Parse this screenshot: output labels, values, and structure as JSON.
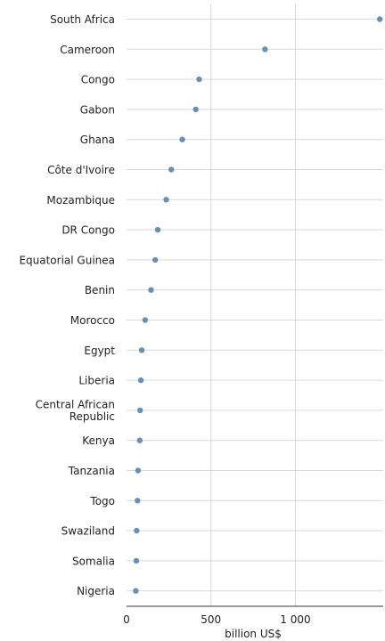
{
  "chart_data": {
    "type": "scatter",
    "categories": [
      "South Africa",
      "Cameroon",
      "Congo",
      "Gabon",
      "Ghana",
      "Côte d'Ivoire",
      "Mozambique",
      "DR Congo",
      "Equatorial Guinea",
      "Benin",
      "Morocco",
      "Egypt",
      "Liberia",
      "Central African Republic",
      "Kenya",
      "Tanzania",
      "Togo",
      "Swaziland",
      "Somalia",
      "Nigeria"
    ],
    "label_lines": [
      [
        "South Africa"
      ],
      [
        "Cameroon"
      ],
      [
        "Congo"
      ],
      [
        "Gabon"
      ],
      [
        "Ghana"
      ],
      [
        "Côte d'Ivoire"
      ],
      [
        "Mozambique"
      ],
      [
        "DR Congo"
      ],
      [
        "Equatorial Guinea"
      ],
      [
        "Benin"
      ],
      [
        "Morocco"
      ],
      [
        "Egypt"
      ],
      [
        "Liberia"
      ],
      [
        "Central African",
        "Republic"
      ],
      [
        "Kenya"
      ],
      [
        "Tanzania"
      ],
      [
        "Togo"
      ],
      [
        "Swaziland"
      ],
      [
        "Somalia"
      ],
      [
        "Nigeria"
      ]
    ],
    "values": [
      1500,
      820,
      430,
      410,
      330,
      265,
      235,
      185,
      170,
      145,
      110,
      90,
      85,
      80,
      78,
      68,
      65,
      60,
      58,
      55
    ],
    "xlabel": "billion US$",
    "ylabel": "",
    "xlim": [
      0,
      1520
    ],
    "xticks": [
      0,
      500,
      1000
    ],
    "xtick_labels": [
      "0",
      "500",
      "1 000"
    ],
    "grid": true,
    "point_color": "#6a8fb5"
  }
}
